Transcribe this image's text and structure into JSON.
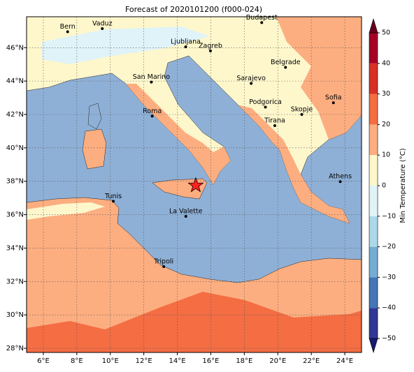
{
  "title": "Forecast of 2020101200 (f000-024)",
  "map": {
    "type": "map",
    "xlim": [
      5,
      25
    ],
    "ylim": [
      27.75,
      47.85
    ],
    "xticks": [
      {
        "value": 6,
        "label": "6°E"
      },
      {
        "value": 8,
        "label": "8°E"
      },
      {
        "value": 10,
        "label": "10°E"
      },
      {
        "value": 12,
        "label": "12°E"
      },
      {
        "value": 14,
        "label": "14°E"
      },
      {
        "value": 16,
        "label": "16°E"
      },
      {
        "value": 18,
        "label": "18°E"
      },
      {
        "value": 20,
        "label": "20°E"
      },
      {
        "value": 22,
        "label": "22°E"
      },
      {
        "value": 24,
        "label": "24°E"
      }
    ],
    "yticks": [
      {
        "value": 28,
        "label": "28°N"
      },
      {
        "value": 30,
        "label": "30°N"
      },
      {
        "value": 32,
        "label": "32°N"
      },
      {
        "value": 34,
        "label": "34°N"
      },
      {
        "value": 36,
        "label": "36°N"
      },
      {
        "value": 38,
        "label": "38°N"
      },
      {
        "value": 40,
        "label": "40°N"
      },
      {
        "value": 42,
        "label": "42°N"
      },
      {
        "value": 44,
        "label": "44°N"
      },
      {
        "value": 46,
        "label": "46°N"
      }
    ],
    "grid": true,
    "cities": [
      {
        "name": "Bern",
        "lon": 7.45,
        "lat": 46.95
      },
      {
        "name": "Vaduz",
        "lon": 9.52,
        "lat": 47.14
      },
      {
        "name": "Budapest",
        "lon": 19.04,
        "lat": 47.5
      },
      {
        "name": "Ljubljana",
        "lon": 14.5,
        "lat": 46.05
      },
      {
        "name": "Zagreb",
        "lon": 15.98,
        "lat": 45.81
      },
      {
        "name": "Belgrade",
        "lon": 20.46,
        "lat": 44.82
      },
      {
        "name": "San Marino",
        "lon": 12.45,
        "lat": 43.94
      },
      {
        "name": "Sarajevo",
        "lon": 18.41,
        "lat": 43.86
      },
      {
        "name": "Sofia",
        "lon": 23.32,
        "lat": 42.7
      },
      {
        "name": "Podgorica",
        "lon": 19.26,
        "lat": 42.44
      },
      {
        "name": "Skopje",
        "lon": 21.43,
        "lat": 42.0
      },
      {
        "name": "Roma",
        "lon": 12.5,
        "lat": 41.9
      },
      {
        "name": "Tirana",
        "lon": 19.82,
        "lat": 41.33
      },
      {
        "name": "Athens",
        "lon": 23.73,
        "lat": 37.98
      },
      {
        "name": "Tunis",
        "lon": 10.18,
        "lat": 36.8
      },
      {
        "name": "La Valette",
        "lon": 14.51,
        "lat": 35.9
      },
      {
        "name": "Tripoli",
        "lon": 13.19,
        "lat": 32.89
      }
    ],
    "marker": {
      "lon": 15.1,
      "lat": 37.75,
      "color": "#ff2020"
    }
  },
  "colorbar": {
    "label": "Min Temperature (°C)",
    "lim": [
      -50,
      50
    ],
    "ticks": [
      {
        "value": -50,
        "label": "−50"
      },
      {
        "value": -40,
        "label": "−40"
      },
      {
        "value": -30,
        "label": "−30"
      },
      {
        "value": -20,
        "label": "−20"
      },
      {
        "value": -10,
        "label": "−10"
      },
      0,
      10,
      20,
      30,
      40,
      50
    ],
    "colors": [
      "#313695",
      "#4575b4",
      "#74add1",
      "#abd9e9",
      "#e0f3f8",
      "#fef7cc",
      "#fdae80",
      "#f46d43",
      "#d73027",
      "#a50026"
    ],
    "under": "#1a1a6e",
    "over": "#67001f"
  }
}
